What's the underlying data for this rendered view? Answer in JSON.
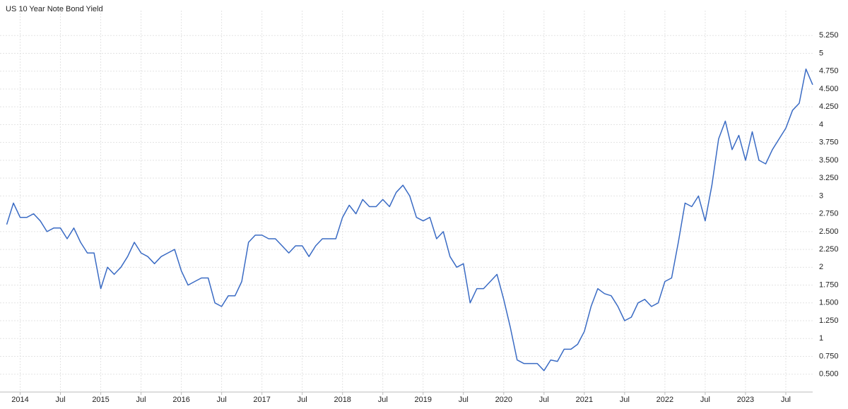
{
  "chart_data": {
    "type": "line",
    "title": "US 10 Year Note Bond Yield",
    "x": [
      "2013-11",
      "2013-12",
      "2014-01",
      "2014-02",
      "2014-03",
      "2014-04",
      "2014-05",
      "2014-06",
      "2014-07",
      "2014-08",
      "2014-09",
      "2014-10",
      "2014-11",
      "2014-12",
      "2015-01",
      "2015-02",
      "2015-03",
      "2015-04",
      "2015-05",
      "2015-06",
      "2015-07",
      "2015-08",
      "2015-09",
      "2015-10",
      "2015-11",
      "2015-12",
      "2016-01",
      "2016-02",
      "2016-03",
      "2016-04",
      "2016-05",
      "2016-06",
      "2016-07",
      "2016-08",
      "2016-09",
      "2016-10",
      "2016-11",
      "2016-12",
      "2017-01",
      "2017-02",
      "2017-03",
      "2017-04",
      "2017-05",
      "2017-06",
      "2017-07",
      "2017-08",
      "2017-09",
      "2017-10",
      "2017-11",
      "2017-12",
      "2018-01",
      "2018-02",
      "2018-03",
      "2018-04",
      "2018-05",
      "2018-06",
      "2018-07",
      "2018-08",
      "2018-09",
      "2018-10",
      "2018-11",
      "2018-12",
      "2019-01",
      "2019-02",
      "2019-03",
      "2019-04",
      "2019-05",
      "2019-06",
      "2019-07",
      "2019-08",
      "2019-09",
      "2019-10",
      "2019-11",
      "2019-12",
      "2020-01",
      "2020-02",
      "2020-03",
      "2020-04",
      "2020-05",
      "2020-06",
      "2020-07",
      "2020-08",
      "2020-09",
      "2020-10",
      "2020-11",
      "2020-12",
      "2021-01",
      "2021-02",
      "2021-03",
      "2021-04",
      "2021-05",
      "2021-06",
      "2021-07",
      "2021-08",
      "2021-09",
      "2021-10",
      "2021-11",
      "2021-12",
      "2022-01",
      "2022-02",
      "2022-03",
      "2022-04",
      "2022-05",
      "2022-06",
      "2022-07",
      "2022-08",
      "2022-09",
      "2022-10",
      "2022-11",
      "2022-12",
      "2023-01",
      "2023-02",
      "2023-03",
      "2023-04",
      "2023-05",
      "2023-06",
      "2023-07",
      "2023-08",
      "2023-09",
      "2023-10",
      "2023-11"
    ],
    "series": [
      {
        "name": "US 10 Year Note Bond Yield",
        "color": "#3a6bc4",
        "values": [
          2.6,
          2.9,
          2.7,
          2.7,
          2.75,
          2.65,
          2.5,
          2.55,
          2.55,
          2.4,
          2.55,
          2.35,
          2.2,
          2.2,
          1.7,
          2.0,
          1.9,
          2.0,
          2.15,
          2.35,
          2.2,
          2.15,
          2.05,
          2.15,
          2.2,
          2.25,
          1.95,
          1.75,
          1.8,
          1.85,
          1.85,
          1.5,
          1.45,
          1.6,
          1.6,
          1.8,
          2.35,
          2.45,
          2.45,
          2.4,
          2.4,
          2.3,
          2.2,
          2.3,
          2.3,
          2.15,
          2.3,
          2.4,
          2.4,
          2.4,
          2.7,
          2.87,
          2.75,
          2.95,
          2.85,
          2.85,
          2.95,
          2.85,
          3.05,
          3.15,
          3.0,
          2.7,
          2.65,
          2.7,
          2.4,
          2.5,
          2.15,
          2.0,
          2.05,
          1.5,
          1.7,
          1.7,
          1.8,
          1.9,
          1.55,
          1.15,
          0.7,
          0.65,
          0.65,
          0.65,
          0.55,
          0.7,
          0.68,
          0.85,
          0.85,
          0.92,
          1.1,
          1.45,
          1.7,
          1.63,
          1.6,
          1.45,
          1.25,
          1.3,
          1.5,
          1.55,
          1.45,
          1.5,
          1.8,
          1.85,
          2.35,
          2.9,
          2.85,
          3.0,
          2.65,
          3.15,
          3.8,
          4.05,
          3.65,
          3.85,
          3.5,
          3.9,
          3.5,
          3.45,
          3.65,
          3.8,
          3.95,
          4.2,
          4.3,
          4.78,
          4.56
        ]
      }
    ],
    "xlim": [
      "2013-10",
      "2023-11"
    ],
    "xticks": [
      {
        "value": "2014-01",
        "label": "2014"
      },
      {
        "value": "2014-07",
        "label": "Jul"
      },
      {
        "value": "2015-01",
        "label": "2015"
      },
      {
        "value": "2015-07",
        "label": "Jul"
      },
      {
        "value": "2016-01",
        "label": "2016"
      },
      {
        "value": "2016-07",
        "label": "Jul"
      },
      {
        "value": "2017-01",
        "label": "2017"
      },
      {
        "value": "2017-07",
        "label": "Jul"
      },
      {
        "value": "2018-01",
        "label": "2018"
      },
      {
        "value": "2018-07",
        "label": "Jul"
      },
      {
        "value": "2019-01",
        "label": "2019"
      },
      {
        "value": "2019-07",
        "label": "Jul"
      },
      {
        "value": "2020-01",
        "label": "2020"
      },
      {
        "value": "2020-07",
        "label": "Jul"
      },
      {
        "value": "2021-01",
        "label": "2021"
      },
      {
        "value": "2021-07",
        "label": "Jul"
      },
      {
        "value": "2022-01",
        "label": "2022"
      },
      {
        "value": "2022-07",
        "label": "Jul"
      },
      {
        "value": "2023-01",
        "label": "2023"
      },
      {
        "value": "2023-07",
        "label": "Jul"
      }
    ],
    "ylim": [
      0.25,
      5.5
    ],
    "yticks": [
      {
        "value": 0.5,
        "label": "0.500"
      },
      {
        "value": 0.75,
        "label": "0.750"
      },
      1,
      {
        "value": 1.25,
        "label": "1.250"
      },
      {
        "value": 1.5,
        "label": "1.500"
      },
      {
        "value": 1.75,
        "label": "1.750"
      },
      2,
      {
        "value": 2.25,
        "label": "2.250"
      },
      {
        "value": 2.5,
        "label": "2.500"
      },
      {
        "value": 2.75,
        "label": "2.750"
      },
      3,
      {
        "value": 3.25,
        "label": "3.250"
      },
      {
        "value": 3.5,
        "label": "3.500"
      },
      {
        "value": 3.75,
        "label": "3.750"
      },
      4,
      {
        "value": 4.25,
        "label": "4.250"
      },
      {
        "value": 4.5,
        "label": "4.500"
      },
      {
        "value": 4.75,
        "label": "4.750"
      },
      5,
      {
        "value": 5.25,
        "label": "5.250"
      }
    ],
    "grid": true
  }
}
